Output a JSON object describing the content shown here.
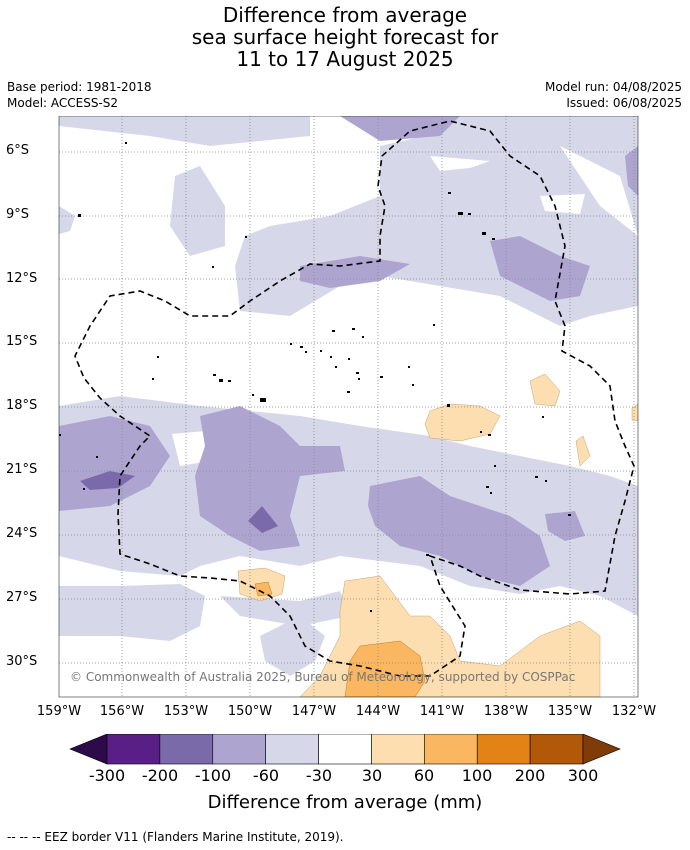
{
  "title": {
    "line1": "Difference from average",
    "line2": "sea surface height forecast for",
    "line3": "11 to 17 August 2025"
  },
  "meta": {
    "base_period": "Base period: 1981-2018",
    "model": "Model: ACCESS-S2",
    "model_run": "Model run: 04/08/2025",
    "issued": "Issued: 06/08/2025"
  },
  "map": {
    "copyright": "© Commonwealth of Australia 2025, Bureau of Meteorology, supported by COSPPac",
    "lat_ticks": [
      "6°S",
      "9°S",
      "12°S",
      "15°S",
      "18°S",
      "21°S",
      "24°S",
      "27°S",
      "30°S"
    ],
    "lon_ticks": [
      "159°W",
      "156°W",
      "153°W",
      "150°W",
      "147°W",
      "144°W",
      "141°W",
      "138°W",
      "135°W",
      "132°W"
    ]
  },
  "colorbar": {
    "labels": [
      "-300",
      "-200",
      "-100",
      "-60",
      "-30",
      "30",
      "60",
      "100",
      "200",
      "300"
    ],
    "colors": [
      "#2d0a4a",
      "#5a1f86",
      "#7b6aaa",
      "#ada5d0",
      "#d7d7ea",
      "#ffffff",
      "#fddeb1",
      "#fab660",
      "#e38316",
      "#b15809",
      "#7f3b08"
    ],
    "title": "Difference from average (mm)"
  },
  "footer": "--  --  -- EEZ border V11 (Flanders Marine Institute, 2019)."
}
